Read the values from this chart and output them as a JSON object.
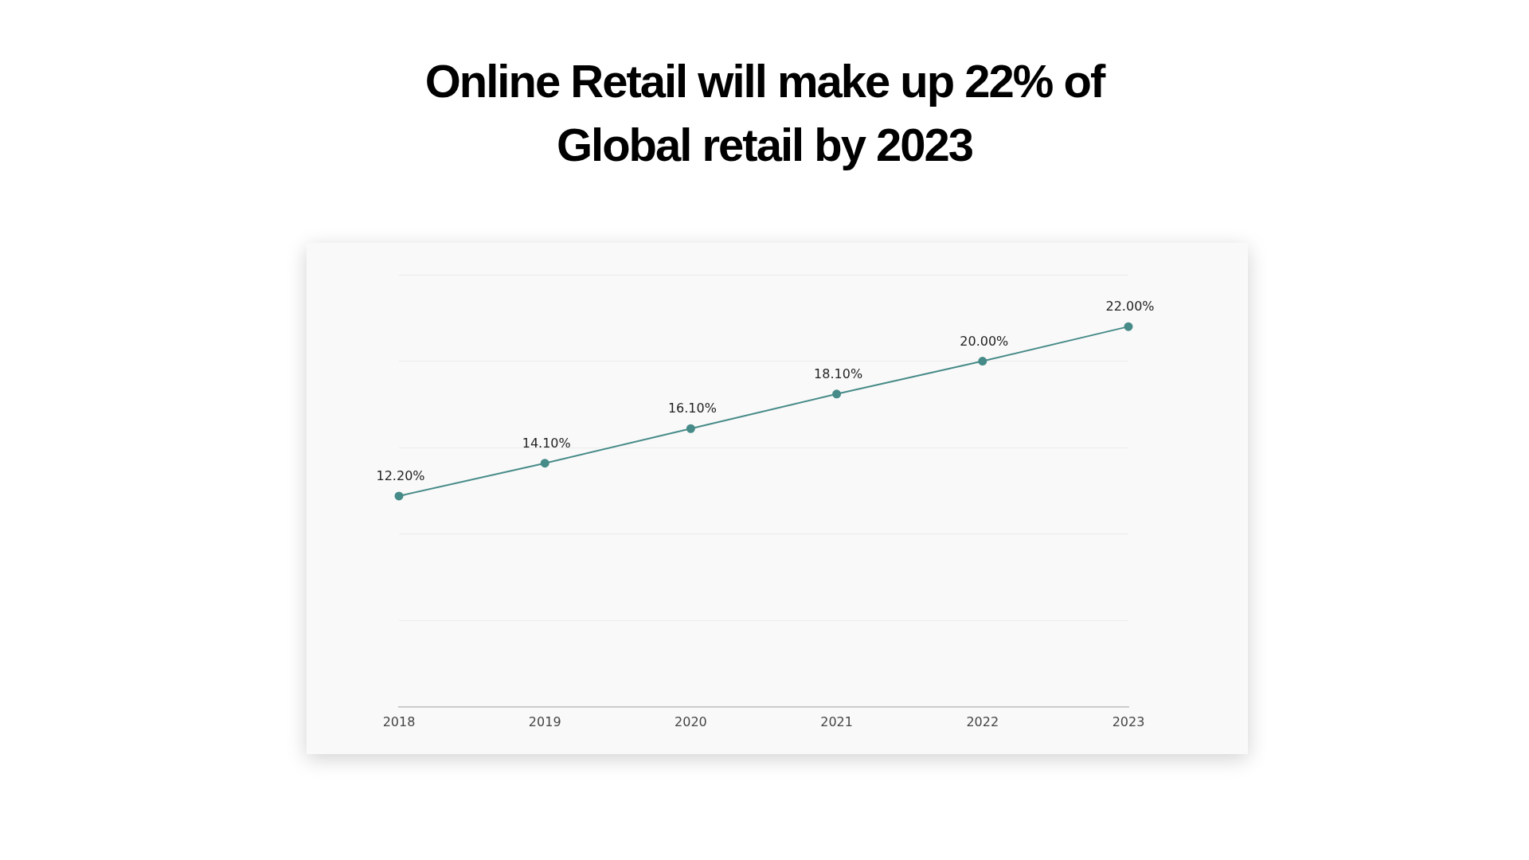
{
  "chart_data": {
    "type": "line",
    "title": "Online Retail will make up 22% of\nGlobal retail by 2023",
    "categories": [
      "2018",
      "2019",
      "2020",
      "2021",
      "2022",
      "2023"
    ],
    "series": [
      {
        "color": "#468b88",
        "values": [
          12.2,
          14.1,
          16.1,
          18.1,
          20.0,
          22.0
        ],
        "value_labels": [
          "12.20%",
          "14.10%",
          "16.10%",
          "18.10%",
          "20.00%",
          "22.00%"
        ]
      }
    ],
    "ylim": [
      0,
      25
    ],
    "yticks": [
      0,
      5,
      10,
      15,
      20,
      25
    ],
    "grid": "y",
    "tick_labels": "x",
    "marker": "circle",
    "line_style": "solid",
    "legend": false
  }
}
